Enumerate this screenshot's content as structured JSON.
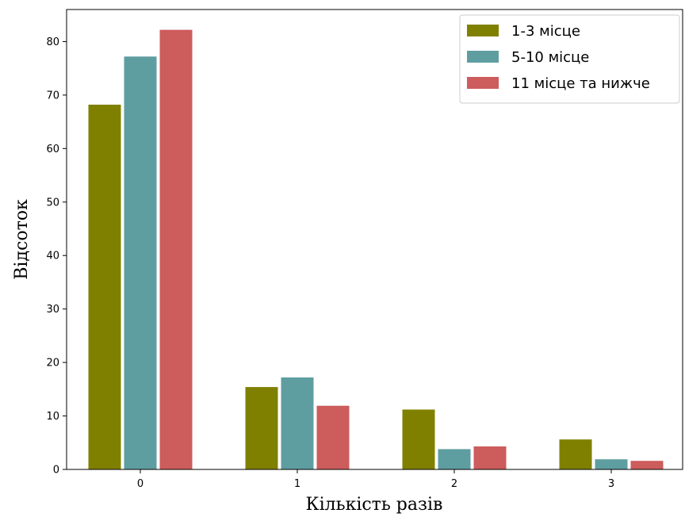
{
  "chart_data": {
    "type": "bar",
    "title": "",
    "xlabel": "Кількість разів",
    "ylabel": "Відсоток",
    "categories": [
      "0",
      "1",
      "2",
      "3"
    ],
    "yticks": [
      "0",
      "10",
      "20",
      "30",
      "40",
      "50",
      "60",
      "70",
      "80"
    ],
    "ylim": [
      0,
      86
    ],
    "grid": false,
    "legend_position": "top-right",
    "series": [
      {
        "name": "1-3 місце",
        "color": "#808000",
        "values": [
          68.2,
          15.4,
          11.2,
          5.6
        ]
      },
      {
        "name": "5-10 місце",
        "color": "#5f9ea0",
        "values": [
          77.2,
          17.2,
          3.8,
          1.9
        ]
      },
      {
        "name": "11 місце та нижче",
        "color": "#cd5c5c",
        "values": [
          82.2,
          11.9,
          4.3,
          1.6
        ]
      }
    ]
  }
}
